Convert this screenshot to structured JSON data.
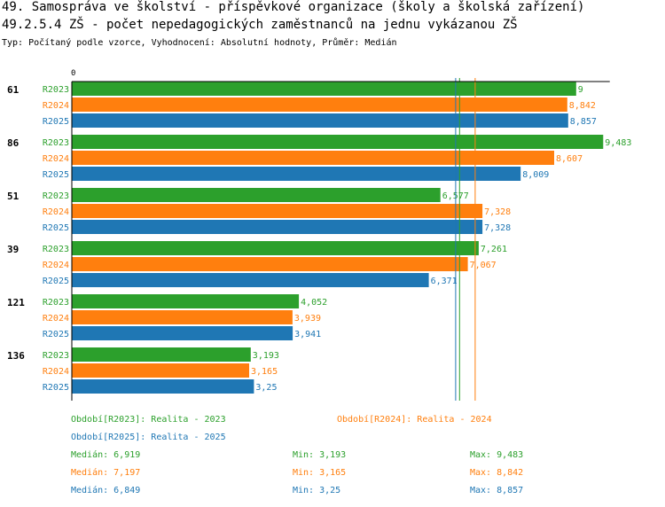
{
  "header": {
    "title": "49. Samospráva ve školství - příspěvkové organizace (školy a školská zařízení)",
    "subtitle_title": "49.2.5.4 ZŠ - počet nepedagogických zaměstnanců na jednu vykázanou ZŠ",
    "type_line": "Typ: Počítaný podle vzorce, Vyhodnocení: Absolutní hodnoty, Průměr: Medián"
  },
  "colors": {
    "R2023": "#2ca02c",
    "R2024": "#ff7f0e",
    "R2025": "#1f77b4"
  },
  "chart_data": {
    "type": "bar",
    "orientation": "horizontal",
    "axis_zero_label": "0",
    "xlim": [
      0,
      10
    ],
    "groups": [
      {
        "label": "61",
        "values": [
          9,
          8.842,
          8.857
        ],
        "labels": [
          "9",
          "8,842",
          "8,857"
        ]
      },
      {
        "label": "86",
        "values": [
          9.483,
          8.607,
          8.009
        ],
        "labels": [
          "9,483",
          "8,607",
          "8,009"
        ]
      },
      {
        "label": "51",
        "values": [
          6.577,
          7.328,
          7.328
        ],
        "labels": [
          "6,577",
          "7,328",
          "7,328"
        ]
      },
      {
        "label": "39",
        "values": [
          7.261,
          7.067,
          6.371
        ],
        "labels": [
          "7,261",
          "7,067",
          "6,371"
        ]
      },
      {
        "label": "121",
        "values": [
          4.052,
          3.939,
          3.941
        ],
        "labels": [
          "4,052",
          "3,939",
          "3,941"
        ]
      },
      {
        "label": "136",
        "values": [
          3.193,
          3.165,
          3.25
        ],
        "labels": [
          "3,193",
          "3,165",
          "3,25"
        ]
      }
    ],
    "series": [
      {
        "key": "R2023",
        "name": "R2023",
        "median": 6.919
      },
      {
        "key": "R2024",
        "name": "R2024",
        "median": 7.197
      },
      {
        "key": "R2025",
        "name": "R2025",
        "median": 6.849
      }
    ]
  },
  "legend": {
    "periods": [
      {
        "key": "R2023",
        "text": "Období[R2023]: Realita - 2023"
      },
      {
        "key": "R2024",
        "text": "Období[R2024]: Realita - 2024"
      },
      {
        "key": "R2025",
        "text": "Období[R2025]: Realita - 2025"
      }
    ],
    "stats": [
      {
        "key": "R2023",
        "median": "Medián: 6,919",
        "min": "Min: 3,193",
        "max": "Max: 9,483"
      },
      {
        "key": "R2024",
        "median": "Medián: 7,197",
        "min": "Min: 3,165",
        "max": "Max: 8,842"
      },
      {
        "key": "R2025",
        "median": "Medián: 6,849",
        "min": "Min: 3,25",
        "max": "Max: 8,857"
      }
    ]
  }
}
